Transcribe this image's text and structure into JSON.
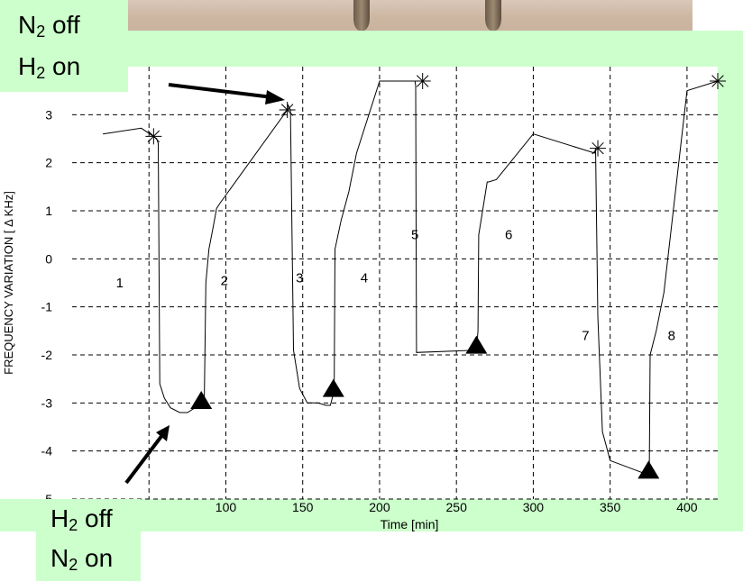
{
  "annotations": {
    "top_left": {
      "line1_gas": "N",
      "line1_sub": "2",
      "line1_state": " off",
      "line2_gas": "H",
      "line2_sub": "2",
      "line2_state": " on"
    },
    "bottom_left": {
      "line1_gas": "H",
      "line1_sub": "2",
      "line1_state": " off",
      "line2_gas": "N",
      "line2_sub": "2",
      "line2_state": " on"
    }
  },
  "colors": {
    "annotation_bg": "#ccffcc",
    "line": "#000000",
    "grid": "#000000"
  },
  "chart_data": {
    "type": "line",
    "title": "",
    "xlabel": "Time [min]",
    "ylabel": "FREQUENCY VARIATION [ Δ KHz]",
    "xlim": [
      0,
      420
    ],
    "ylim": [
      -5,
      4
    ],
    "xticks": [
      100,
      150,
      200,
      250,
      300,
      350,
      400
    ],
    "yticks": [
      -5,
      -4,
      -3,
      -2,
      -1,
      0,
      1,
      2,
      3
    ],
    "grid": true,
    "series": [
      {
        "x": [
          20,
          45,
          55,
          56,
          57,
          60,
          64,
          70,
          75,
          85,
          86,
          87,
          89,
          92,
          94,
          96,
          140,
          140.5,
          142,
          144,
          148,
          153,
          160,
          165,
          168,
          170,
          170.5,
          171,
          175,
          180,
          185,
          200,
          223,
          223.5,
          224,
          263,
          264,
          264.5,
          267,
          270,
          271,
          276,
          300,
          340,
          340.5,
          342,
          345,
          350,
          375,
          375.5,
          376,
          380,
          385,
          400,
          420
        ],
        "y": [
          2.6,
          2.72,
          2.5,
          2.4,
          -2.6,
          -2.9,
          -3.1,
          -3.2,
          -3.2,
          -3,
          -2.9,
          -0.5,
          0.2,
          0.7,
          1.05,
          1.15,
          3.1,
          3.2,
          3.1,
          -1.9,
          -2.7,
          -3,
          -3,
          -3.05,
          -3.05,
          -2.8,
          -2.5,
          0.2,
          0.8,
          1.4,
          2.2,
          3.7,
          3.7,
          3.6,
          -1.95,
          -1.9,
          -1.5,
          0.5,
          1,
          1.6,
          1.6,
          1.65,
          2.6,
          2.2,
          2.3,
          -1.2,
          -3.6,
          -4.2,
          -4.5,
          -4.4,
          -2,
          -1.5,
          -0.7,
          3.5,
          3.7
        ]
      }
    ],
    "markers": [
      {
        "symbol": "star",
        "x": [
          53,
          140,
          228,
          342,
          420
        ],
        "y": [
          2.55,
          3.1,
          3.7,
          2.3,
          3.7
        ]
      },
      {
        "symbol": "triangle",
        "x": [
          84,
          170,
          263,
          375
        ],
        "y": [
          -3.05,
          -2.8,
          -1.9,
          -4.5
        ]
      }
    ],
    "segment_labels": [
      {
        "text": "1",
        "x": 31,
        "y": -0.5
      },
      {
        "text": "2",
        "x": 99,
        "y": -0.45
      },
      {
        "text": "3",
        "x": 148,
        "y": -0.4
      },
      {
        "text": "4",
        "x": 190,
        "y": -0.4
      },
      {
        "text": "5",
        "x": 223,
        "y": 0.5
      },
      {
        "text": "6",
        "x": 284,
        "y": 0.5
      },
      {
        "text": "7",
        "x": 334,
        "y": -1.6
      },
      {
        "text": "8",
        "x": 390,
        "y": -1.6
      }
    ]
  }
}
